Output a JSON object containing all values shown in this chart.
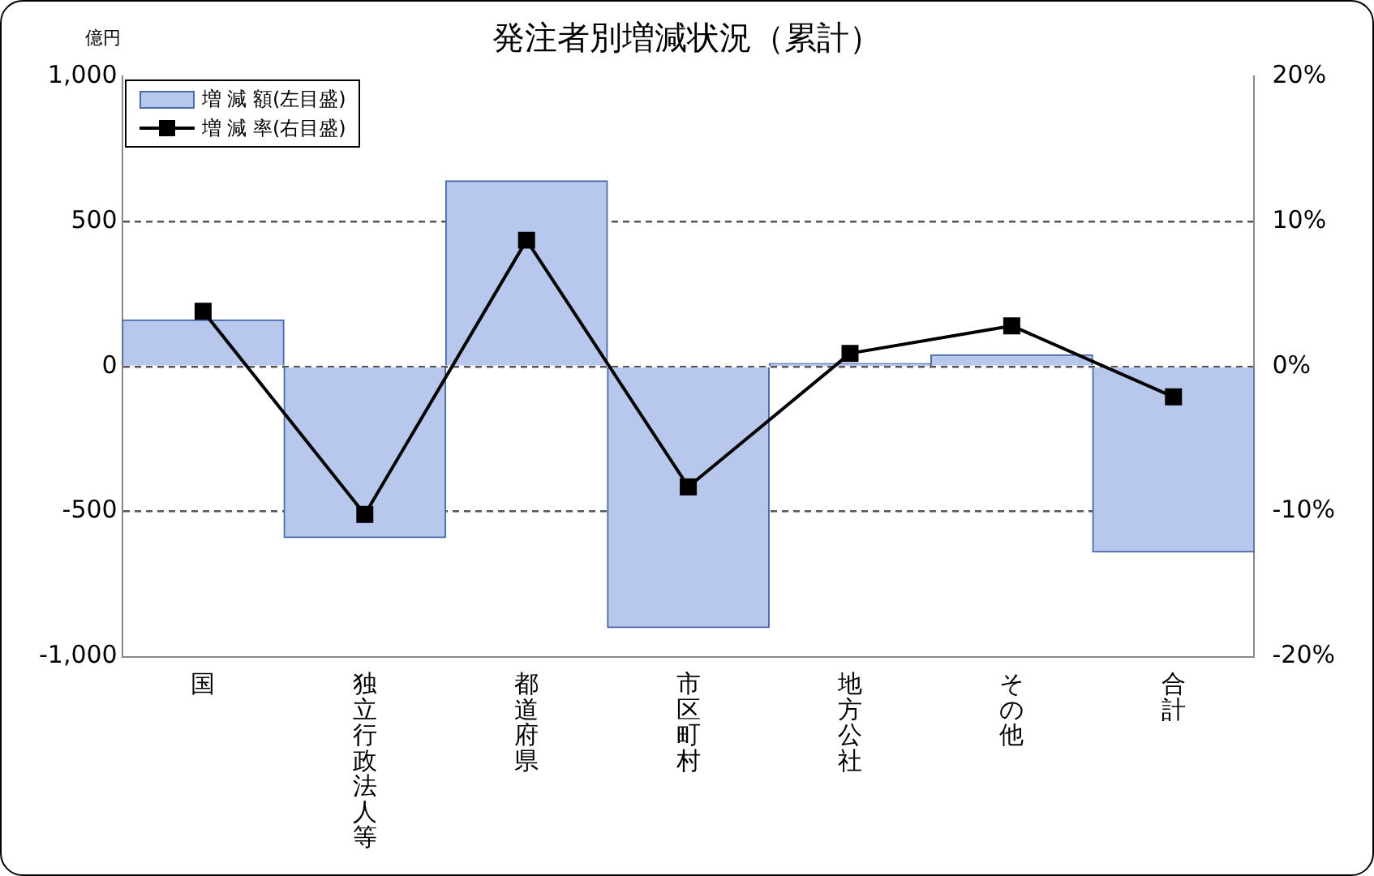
{
  "chart_data": {
    "type": "bar",
    "title": "発注者別増減状況（累計）",
    "ylabel": "億円",
    "categories": [
      "国",
      "独立行政法人等",
      "都道府県",
      "市区町村",
      "地方公社",
      "その他",
      "合計"
    ],
    "series": [
      {
        "name": "増 減 額(左目盛)",
        "color": "#b8c8ec",
        "values": [
          160,
          -590,
          640,
          -900,
          10,
          40,
          -640
        ]
      },
      {
        "name": "増 減 率(右目盛)",
        "type": "line",
        "axis": "y2",
        "color": "#000000",
        "marker": "square",
        "values": [
          3.8,
          -10.2,
          8.7,
          -8.3,
          0.9,
          2.8,
          -2.1
        ]
      }
    ],
    "ylim": [
      -1000,
      1000
    ],
    "yticks": [
      {
        "value": -1000,
        "label": "-1,000"
      },
      -500,
      0,
      500,
      {
        "value": 1000,
        "label": "1,000"
      }
    ],
    "y2lim": [
      -20,
      20
    ],
    "y2ticks": [
      {
        "value": -20,
        "label": "-20%"
      },
      {
        "value": -10,
        "label": "-10%"
      },
      {
        "value": 0,
        "label": "0%"
      },
      {
        "value": 10,
        "label": "10%"
      },
      {
        "value": 20,
        "label": "20%"
      }
    ],
    "grid": "y",
    "legend": "top left"
  }
}
